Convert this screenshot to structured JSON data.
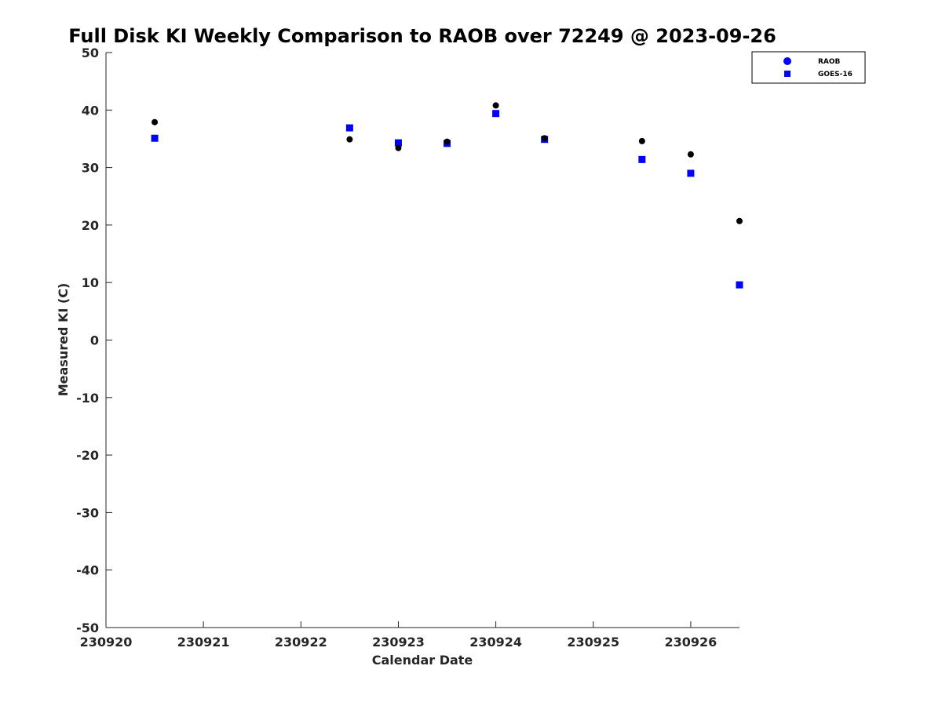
{
  "chart_data": {
    "type": "scatter",
    "title": "Full Disk KI Weekly Comparison to RAOB over 72249 @ 2023-09-26",
    "xlabel": "Calendar Date",
    "ylabel": "Measured KI (C)",
    "xlim": [
      0,
      6.5
    ],
    "ylim": [
      -50,
      50
    ],
    "x_ticks": [
      0,
      1,
      2,
      3,
      4,
      5,
      6
    ],
    "x_tick_labels": [
      "230920",
      "230921",
      "230922",
      "230923",
      "230924",
      "230925",
      "230926"
    ],
    "y_ticks": [
      -50,
      -40,
      -30,
      -20,
      -10,
      0,
      10,
      20,
      30,
      40,
      50
    ],
    "y_tick_labels": [
      "-50",
      "-40",
      "-30",
      "-20",
      "-10",
      "0",
      "10",
      "20",
      "30",
      "40",
      "50"
    ],
    "grid": false,
    "legend_position": "top-right",
    "series": [
      {
        "name": "RAOB",
        "marker": "circle",
        "color": "#000000",
        "legend_color": "#0000ff",
        "x": [
          0.5,
          2.5,
          3.0,
          3.5,
          4.0,
          4.5,
          5.5,
          6.0,
          6.5
        ],
        "values": [
          37.9,
          34.9,
          33.4,
          34.5,
          40.8,
          35.1,
          34.6,
          32.3,
          20.7
        ]
      },
      {
        "name": "GOES-16",
        "marker": "square",
        "color": "#0000ff",
        "legend_color": "#0000ff",
        "x": [
          0.5,
          2.5,
          3.0,
          3.5,
          4.0,
          4.5,
          5.5,
          6.0,
          6.5
        ],
        "values": [
          35.1,
          36.9,
          34.3,
          34.2,
          39.4,
          34.9,
          31.4,
          29.0,
          9.6
        ]
      }
    ]
  }
}
